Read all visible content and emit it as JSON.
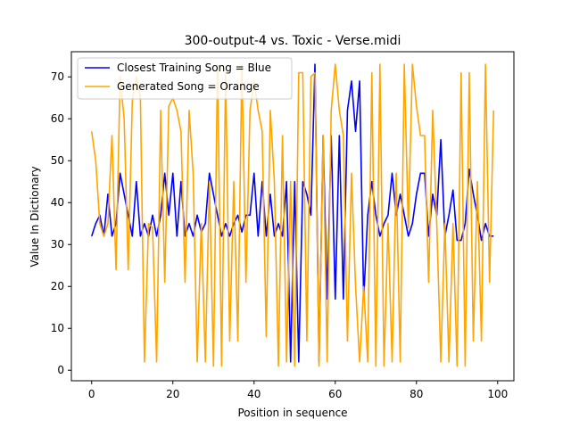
{
  "chart_data": {
    "type": "line",
    "title": "300-output-4 vs. Toxic - Verse.midi",
    "xlabel": "Position in sequence",
    "ylabel": "Value In Dictionary",
    "xlim": [
      -5,
      104
    ],
    "ylim": [
      -2.5,
      76
    ],
    "xticks": [
      0,
      20,
      40,
      60,
      80,
      100
    ],
    "yticks": [
      0,
      10,
      20,
      30,
      40,
      50,
      60,
      70
    ],
    "grid": false,
    "legend_position": "top-left",
    "series": [
      {
        "name": "Closest Training Song = Blue",
        "color": "#0000ff",
        "x": [
          0,
          1,
          2,
          3,
          4,
          5,
          6,
          7,
          8,
          9,
          10,
          11,
          12,
          13,
          14,
          15,
          16,
          17,
          18,
          19,
          20,
          21,
          22,
          23,
          24,
          25,
          26,
          27,
          28,
          29,
          30,
          31,
          32,
          33,
          34,
          35,
          36,
          37,
          38,
          39,
          40,
          41,
          42,
          43,
          44,
          45,
          46,
          47,
          48,
          49,
          50,
          51,
          52,
          53,
          54,
          55,
          56,
          57,
          58,
          59,
          60,
          61,
          62,
          63,
          64,
          65,
          66,
          67,
          68,
          69,
          70,
          71,
          72,
          73,
          74,
          75,
          76,
          77,
          78,
          79,
          80,
          81,
          82,
          83,
          84,
          85,
          86,
          87,
          88,
          89,
          90,
          91,
          92,
          93,
          94,
          95,
          96,
          97,
          98,
          99
        ],
        "y": [
          32,
          35,
          37,
          32,
          42,
          32,
          35,
          47,
          42,
          37,
          32,
          45,
          32,
          35,
          32,
          37,
          32,
          37,
          47,
          37,
          47,
          32,
          45,
          32,
          35,
          32,
          37,
          33,
          35,
          47,
          42,
          37,
          32,
          35,
          32,
          35,
          37,
          33,
          37,
          37,
          47,
          32,
          45,
          32,
          42,
          32,
          35,
          32,
          45,
          2,
          45,
          2,
          45,
          42,
          37,
          73,
          2,
          56,
          17,
          56,
          17,
          56,
          17,
          62,
          69,
          57,
          69,
          17,
          37,
          45,
          37,
          32,
          35,
          37,
          47,
          37,
          42,
          37,
          32,
          35,
          42,
          47,
          47,
          32,
          42,
          37,
          55,
          32,
          37,
          43,
          31,
          31,
          35,
          48,
          42,
          37,
          31,
          35,
          32,
          32
        ]
      },
      {
        "name": "Generated Song = Orange",
        "color": "#ffa500",
        "x": [
          0,
          1,
          2,
          3,
          4,
          5,
          6,
          7,
          8,
          9,
          10,
          11,
          12,
          13,
          14,
          15,
          16,
          17,
          18,
          19,
          20,
          21,
          22,
          23,
          24,
          25,
          26,
          27,
          28,
          29,
          30,
          31,
          32,
          33,
          34,
          35,
          36,
          37,
          38,
          39,
          40,
          41,
          42,
          43,
          44,
          45,
          46,
          47,
          48,
          49,
          50,
          51,
          52,
          53,
          54,
          55,
          56,
          57,
          58,
          59,
          60,
          61,
          62,
          63,
          64,
          65,
          66,
          67,
          68,
          69,
          70,
          71,
          72,
          73,
          74,
          75,
          76,
          77,
          78,
          79,
          80,
          81,
          82,
          83,
          84,
          85,
          86,
          87,
          88,
          89,
          90,
          91,
          92,
          93,
          94,
          95,
          96,
          97,
          98,
          99
        ],
        "y": [
          57,
          50,
          35,
          32,
          35,
          56,
          24,
          70,
          60,
          24,
          64,
          70,
          65,
          2,
          35,
          34,
          2,
          62,
          21,
          63,
          65,
          62,
          57,
          21,
          62,
          47,
          2,
          35,
          2,
          45,
          1,
          73,
          1,
          71,
          7,
          45,
          7,
          73,
          21,
          62,
          69,
          62,
          57,
          8,
          62,
          45,
          1,
          56,
          2,
          45,
          1,
          71,
          71,
          7,
          70,
          71,
          1,
          56,
          2,
          62,
          73,
          62,
          56,
          7,
          47,
          20,
          2,
          20,
          2,
          71,
          1,
          73,
          1,
          35,
          2,
          47,
          2,
          73,
          34,
          73,
          63,
          56,
          56,
          21,
          62,
          35,
          2,
          35,
          2,
          35,
          1,
          71,
          1,
          71,
          7,
          45,
          7,
          73,
          21,
          62
        ]
      }
    ]
  }
}
